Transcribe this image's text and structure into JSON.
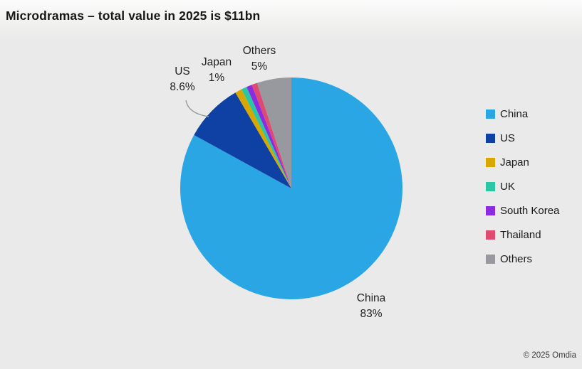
{
  "title": "Microdramas – total value in 2025 is $11bn",
  "footer": {
    "copyright": "© 2025 Omdia"
  },
  "chart_data": {
    "type": "pie",
    "title": "Microdramas – total value in 2025 is $11bn",
    "total_value_label": "$11bn",
    "categories": [
      "China",
      "US",
      "Japan",
      "UK",
      "South Korea",
      "Thailand",
      "Others"
    ],
    "values": [
      83,
      8.6,
      1,
      0.8,
      0.8,
      0.8,
      5
    ],
    "unit": "%",
    "colors": [
      "#2BA6E4",
      "#0E41A3",
      "#D8A800",
      "#2BC7A4",
      "#8C2BE0",
      "#DF4A72",
      "#97999F"
    ],
    "start_angle_deg": 0,
    "direction": "clockwise",
    "legend_position": "right",
    "slice_labels": {
      "us": {
        "name": "US",
        "value": "8.6%"
      },
      "japan": {
        "name": "Japan",
        "value": "1%"
      },
      "others": {
        "name": "Others",
        "value": "5%"
      },
      "china": {
        "name": "China",
        "value": "83%"
      }
    }
  }
}
